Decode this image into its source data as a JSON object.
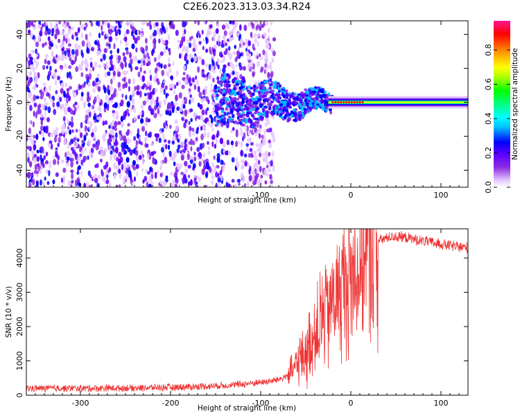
{
  "title": "C2E6.2023.313.03.34.R24",
  "chart_data": [
    {
      "type": "heatmap",
      "xlabel": "Height of straight line (km)",
      "ylabel": "Frequency (Hz)",
      "xlim": [
        -360,
        130
      ],
      "ylim": [
        -50,
        48
      ],
      "xticks": [
        -300,
        -200,
        -100,
        0,
        100
      ],
      "yticks": [
        -40,
        -20,
        0,
        20,
        40
      ],
      "colorbar": {
        "label": "Normalized spectral amplitude",
        "range": [
          0,
          0.97
        ],
        "ticks": [
          0.0,
          0.2,
          0.4,
          0.6,
          0.8
        ],
        "colormap": [
          "#ffffff",
          "#e6c9ff",
          "#8a2be2",
          "#5a00ff",
          "#0000ff",
          "#00bfff",
          "#00ffff",
          "#00ff7f",
          "#00ff00",
          "#ffff00",
          "#ff8c00",
          "#ff0000",
          "#ff1493"
        ]
      },
      "description_values": {
        "noise_region_x": [
          -360,
          -85
        ],
        "carrier_line_frequency": 0,
        "carrier_visible_from_x": -20,
        "transition_region_x": [
          -150,
          -20
        ]
      }
    },
    {
      "type": "line",
      "xlabel": "Height of straight line (km)",
      "ylabel": "SNR (10 * v/v)",
      "xlim": [
        -360,
        130
      ],
      "ylim": [
        0,
        4850
      ],
      "xticks": [
        -300,
        -200,
        -100,
        0,
        100
      ],
      "yticks": [
        0,
        1000,
        2000,
        3000,
        4000
      ],
      "series": [
        {
          "color": "#ee3333",
          "points": [
            [
              -360,
              200
            ],
            [
              -300,
              200
            ],
            [
              -250,
              210
            ],
            [
              -200,
              230
            ],
            [
              -160,
              260
            ],
            [
              -130,
              300
            ],
            [
              -110,
              350
            ],
            [
              -90,
              400
            ],
            [
              -75,
              500
            ],
            [
              -65,
              700
            ],
            [
              -55,
              1100
            ],
            [
              -45,
              1500
            ],
            [
              -35,
              2000
            ],
            [
              -28,
              2400
            ],
            [
              -20,
              2800
            ],
            [
              -12,
              3000
            ],
            [
              -5,
              3200
            ],
            [
              5,
              3700
            ],
            [
              15,
              4100
            ],
            [
              25,
              4400
            ],
            [
              35,
              4550
            ],
            [
              45,
              4620
            ],
            [
              60,
              4600
            ],
            [
              75,
              4520
            ],
            [
              90,
              4450
            ],
            [
              105,
              4380
            ],
            [
              120,
              4320
            ],
            [
              130,
              4300
            ]
          ]
        }
      ]
    }
  ]
}
